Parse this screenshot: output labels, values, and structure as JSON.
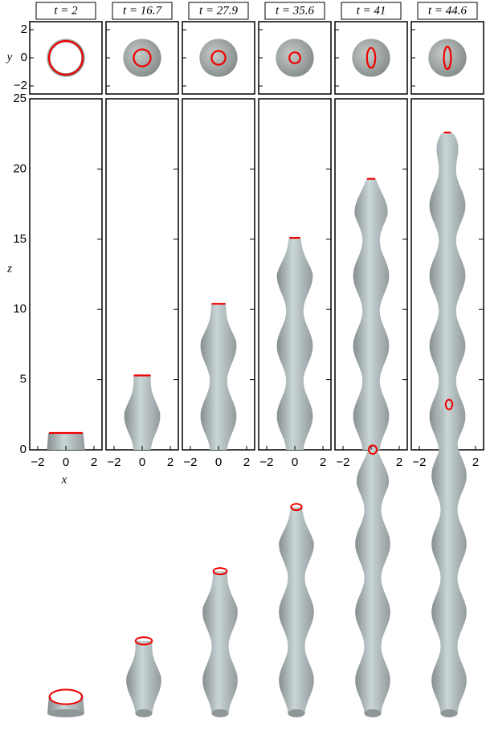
{
  "panels": [
    {
      "label": "t = 2",
      "height": 1.2
    },
    {
      "label": "t = 16.7",
      "height": 5.3
    },
    {
      "label": "t = 27.9",
      "height": 10.4
    },
    {
      "label": "t = 35.6",
      "height": 15.1
    },
    {
      "label": "t = 41",
      "height": 19.3
    },
    {
      "label": "t = 44.6",
      "height": 22.6
    }
  ],
  "top_axes": {
    "ylabel": "y",
    "ylim": [
      -2.57,
      2.57
    ],
    "yticks": [
      {
        "value": -2,
        "label": "−2"
      },
      0,
      2
    ]
  },
  "main_axes": {
    "ylabel": "z",
    "xlabel": "x",
    "xlim": [
      -2.57,
      2.57
    ],
    "ylim": [
      0,
      25
    ],
    "xticks": [
      {
        "value": -2,
        "label": "−2"
      },
      0,
      2
    ],
    "yticks": [
      0,
      5,
      10,
      15,
      20,
      25
    ]
  }
}
